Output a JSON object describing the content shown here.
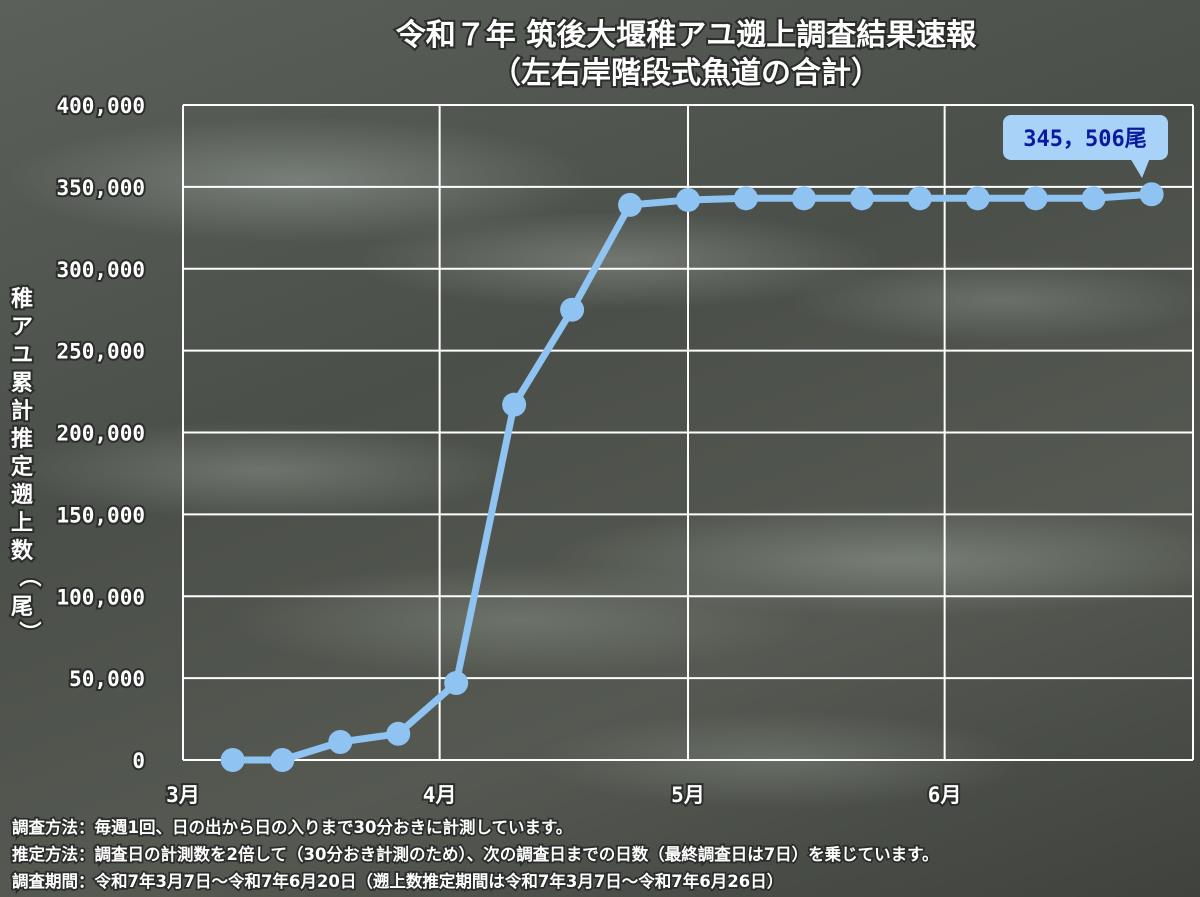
{
  "chart_data": {
    "type": "line",
    "title": "令和７年 筑後大堰稚アユ遡上調査結果速報",
    "subtitle": "（左右岸階段式魚道の合計）",
    "ylabel": "稚アユ累計推定遡上数（尾）",
    "ylim": [
      0,
      400000
    ],
    "ytick_labels": [
      "0",
      "50,000",
      "100,000",
      "150,000",
      "200,000",
      "250,000",
      "300,000",
      "350,000",
      "400,000"
    ],
    "ytick_values": [
      0,
      50000,
      100000,
      150000,
      200000,
      250000,
      300000,
      350000,
      400000
    ],
    "xtick_labels": [
      "3月",
      "4月",
      "5月",
      "6月"
    ],
    "xtick_values": [
      "2025-03-01",
      "2025-04-01",
      "2025-05-01",
      "2025-06-01"
    ],
    "xlim": [
      "2025-03-01",
      "2025-07-01"
    ],
    "grid": true,
    "series": [
      {
        "color": "#8fc3f1",
        "x": [
          "2025-03-07",
          "2025-03-13",
          "2025-03-20",
          "2025-03-27",
          "2025-04-03",
          "2025-04-10",
          "2025-04-17",
          "2025-04-24",
          "2025-05-01",
          "2025-05-08",
          "2025-05-15",
          "2025-05-22",
          "2025-05-29",
          "2025-06-05",
          "2025-06-12",
          "2025-06-19",
          "2025-06-26"
        ],
        "values": [
          0,
          0,
          11000,
          16000,
          47000,
          217000,
          275000,
          339000,
          342000,
          343000,
          343000,
          343000,
          343000,
          343000,
          343000,
          343000,
          345506
        ]
      }
    ],
    "annotation": "345，506尾"
  },
  "notes": [
    "調査方法：毎週1回、日の出から日の入りまで30分おきに計測しています。",
    "推定方法：調査日の計測数を2倍して（30分おき計測のため）、次の調査日までの日数（最終調査日は7日）を乗じています。",
    "調査期間：令和7年3月7日～令和7年6月20日（遡上数推定期間は令和7年3月7日～令和7年6月26日）"
  ]
}
